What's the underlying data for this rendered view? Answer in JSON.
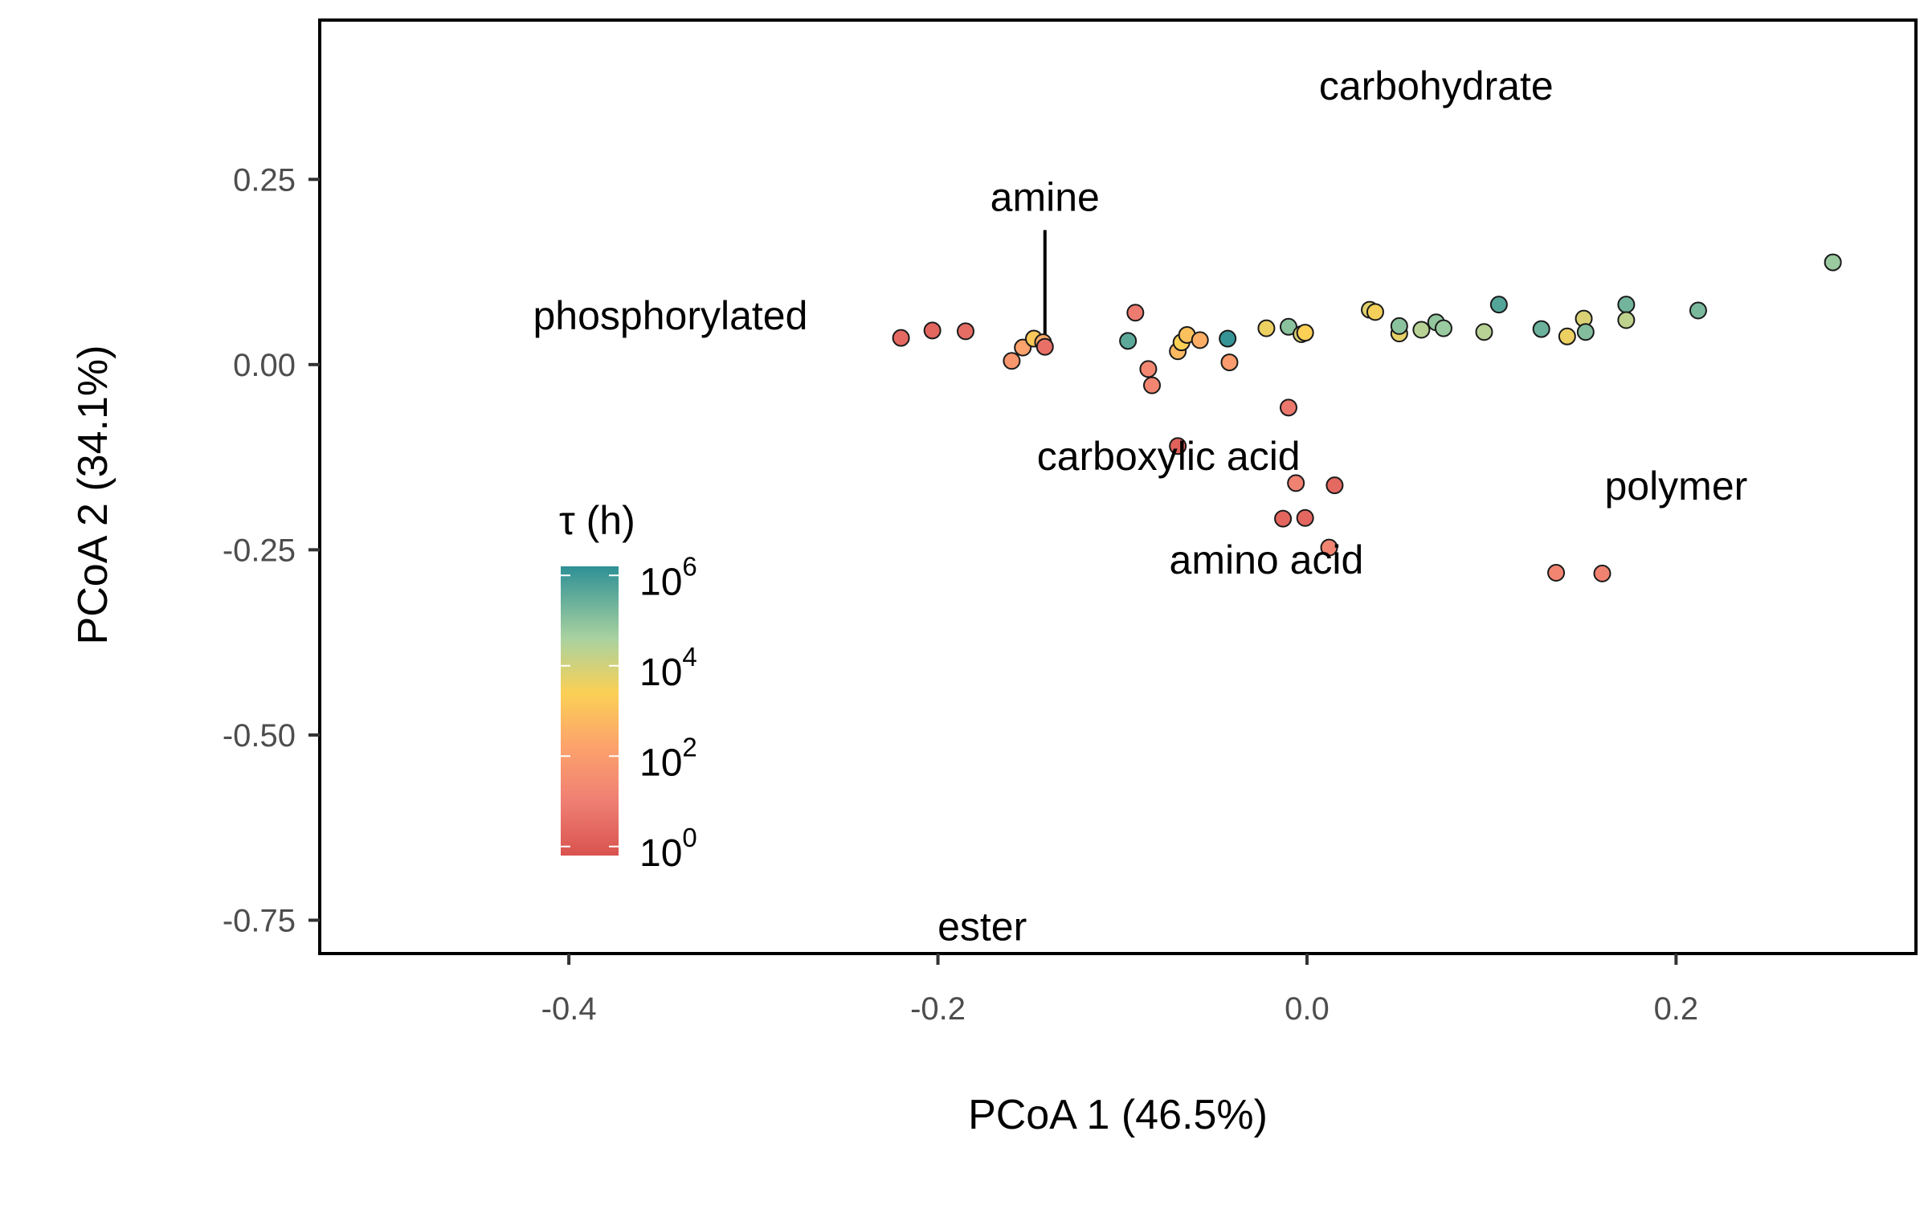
{
  "chart_data": {
    "type": "scatter",
    "xlabel": "PCoA 1 (46.5%)",
    "ylabel": "PCoA 2 (34.1%)",
    "xlim": [
      -0.535,
      0.33
    ],
    "ylim": [
      -0.795,
      0.465
    ],
    "x_ticks": [
      {
        "value": -0.4,
        "label": "-0.4"
      },
      {
        "value": -0.2,
        "label": "-0.2"
      },
      {
        "value": 0.0,
        "label": "0.0"
      },
      {
        "value": 0.2,
        "label": "0.2"
      }
    ],
    "y_ticks": [
      {
        "value": 0.25,
        "label": "0.25"
      },
      {
        "value": 0.0,
        "label": "0.00"
      },
      {
        "value": -0.25,
        "label": "-0.25"
      },
      {
        "value": -0.5,
        "label": "-0.50"
      },
      {
        "value": -0.75,
        "label": "-0.75"
      }
    ],
    "grid": false,
    "annotations": [
      {
        "text": "carbohydrate",
        "x": 0.07,
        "y": 0.375,
        "anchor": "middle"
      },
      {
        "text": "amine",
        "x": -0.142,
        "y": 0.225,
        "anchor": "middle",
        "pointer_to": {
          "x": -0.142,
          "y": 0.03
        }
      },
      {
        "text": "phosphorylated",
        "x": -0.345,
        "y": 0.065,
        "anchor": "middle"
      },
      {
        "text": "carboxylic acid",
        "x": -0.075,
        "y": -0.125,
        "anchor": "middle"
      },
      {
        "text": "polymer",
        "x": 0.2,
        "y": -0.165,
        "anchor": "middle"
      },
      {
        "text": "amino acid",
        "x": -0.022,
        "y": -0.265,
        "anchor": "middle"
      },
      {
        "text": "ester",
        "x": -0.176,
        "y": -0.76,
        "anchor": "middle"
      }
    ],
    "colorbar": {
      "title": "τ (h)",
      "scale": "log10",
      "range": [
        -0.2,
        6.2
      ],
      "ticks": [
        {
          "base": "10",
          "exp": "6",
          "value": 6
        },
        {
          "base": "10",
          "exp": "4",
          "value": 4
        },
        {
          "base": "10",
          "exp": "2",
          "value": 2
        },
        {
          "base": "10",
          "exp": "0",
          "value": 0
        }
      ],
      "stops": [
        {
          "value": -0.2,
          "color": "#d9534f"
        },
        {
          "value": 1.0,
          "color": "#ef7f73"
        },
        {
          "value": 2.2,
          "color": "#fca26c"
        },
        {
          "value": 3.4,
          "color": "#fbd055"
        },
        {
          "value": 4.6,
          "color": "#a9d2a0"
        },
        {
          "value": 6.2,
          "color": "#2e9096"
        }
      ],
      "legend_position": "inside-left"
    },
    "points": [
      {
        "x": -0.22,
        "y": 0.036,
        "log_tau": 0.4
      },
      {
        "x": -0.203,
        "y": 0.046,
        "log_tau": 0.3
      },
      {
        "x": -0.185,
        "y": 0.045,
        "log_tau": 0.5
      },
      {
        "x": -0.16,
        "y": 0.005,
        "log_tau": 1.8
      },
      {
        "x": -0.154,
        "y": 0.023,
        "log_tau": 2.2
      },
      {
        "x": -0.148,
        "y": 0.035,
        "log_tau": 3.2
      },
      {
        "x": -0.143,
        "y": 0.03,
        "log_tau": 2.4
      },
      {
        "x": -0.142,
        "y": 0.024,
        "log_tau": 0.6
      },
      {
        "x": -0.097,
        "y": 0.032,
        "log_tau": 5.6
      },
      {
        "x": -0.093,
        "y": 0.07,
        "log_tau": 0.9
      },
      {
        "x": -0.086,
        "y": -0.006,
        "log_tau": 1.3
      },
      {
        "x": -0.084,
        "y": -0.028,
        "log_tau": 1.2
      },
      {
        "x": -0.07,
        "y": 0.018,
        "log_tau": 2.8
      },
      {
        "x": -0.068,
        "y": 0.03,
        "log_tau": 3.4
      },
      {
        "x": -0.065,
        "y": 0.04,
        "log_tau": 3.0
      },
      {
        "x": -0.058,
        "y": 0.033,
        "log_tau": 2.5
      },
      {
        "x": -0.043,
        "y": 0.035,
        "log_tau": 6.1
      },
      {
        "x": -0.042,
        "y": 0.003,
        "log_tau": 2.0
      },
      {
        "x": -0.022,
        "y": 0.049,
        "log_tau": 3.6
      },
      {
        "x": -0.01,
        "y": 0.051,
        "log_tau": 5.0
      },
      {
        "x": -0.003,
        "y": 0.041,
        "log_tau": 3.9
      },
      {
        "x": -0.001,
        "y": 0.043,
        "log_tau": 3.4
      },
      {
        "x": -0.01,
        "y": -0.058,
        "log_tau": 0.8
      },
      {
        "x": -0.07,
        "y": -0.11,
        "log_tau": 0.2
      },
      {
        "x": -0.006,
        "y": -0.16,
        "log_tau": 1.1
      },
      {
        "x": 0.015,
        "y": -0.163,
        "log_tau": 0.4
      },
      {
        "x": -0.013,
        "y": -0.208,
        "log_tau": 0.3
      },
      {
        "x": -0.001,
        "y": -0.207,
        "log_tau": 0.35
      },
      {
        "x": 0.012,
        "y": -0.247,
        "log_tau": 1.2
      },
      {
        "x": 0.034,
        "y": 0.074,
        "log_tau": 3.8
      },
      {
        "x": 0.037,
        "y": 0.071,
        "log_tau": 3.5
      },
      {
        "x": 0.05,
        "y": 0.042,
        "log_tau": 3.7
      },
      {
        "x": 0.05,
        "y": 0.052,
        "log_tau": 5.0
      },
      {
        "x": 0.062,
        "y": 0.047,
        "log_tau": 4.4
      },
      {
        "x": 0.07,
        "y": 0.057,
        "log_tau": 4.9
      },
      {
        "x": 0.074,
        "y": 0.049,
        "log_tau": 4.8
      },
      {
        "x": 0.096,
        "y": 0.044,
        "log_tau": 4.4
      },
      {
        "x": 0.104,
        "y": 0.081,
        "log_tau": 5.7
      },
      {
        "x": 0.127,
        "y": 0.048,
        "log_tau": 5.4
      },
      {
        "x": 0.141,
        "y": 0.038,
        "log_tau": 3.6
      },
      {
        "x": 0.15,
        "y": 0.062,
        "log_tau": 3.9
      },
      {
        "x": 0.151,
        "y": 0.044,
        "log_tau": 5.1
      },
      {
        "x": 0.173,
        "y": 0.081,
        "log_tau": 5.3
      },
      {
        "x": 0.173,
        "y": 0.06,
        "log_tau": 4.3
      },
      {
        "x": 0.212,
        "y": 0.073,
        "log_tau": 5.2
      },
      {
        "x": 0.285,
        "y": 0.138,
        "log_tau": 4.8
      },
      {
        "x": 0.135,
        "y": -0.281,
        "log_tau": 1.2
      },
      {
        "x": 0.16,
        "y": -0.282,
        "log_tau": 1.1
      }
    ]
  }
}
